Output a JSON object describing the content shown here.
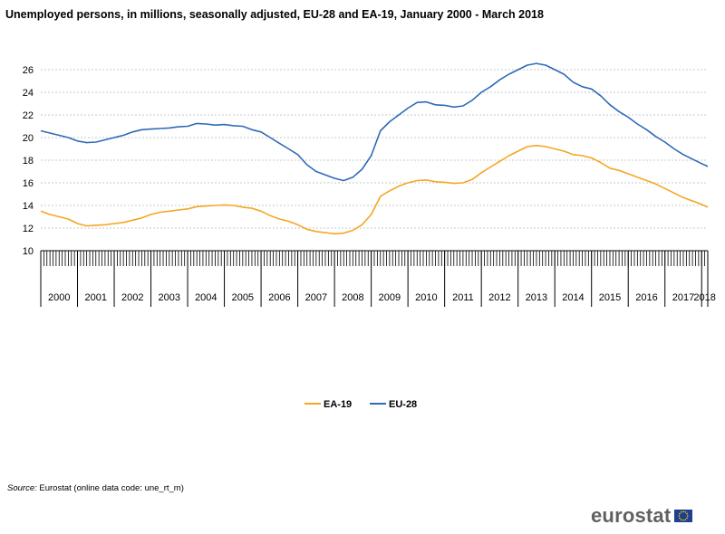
{
  "title": "Unemployed persons, in millions,  seasonally adjusted, EU-28 and EA-19, January 2000 - March 2018",
  "source_label": "Source:",
  "source_text": " Eurostat (online data code: une_rt_m)",
  "logo_text": "eurostat",
  "chart_data": {
    "type": "line",
    "title": "Unemployed persons, in millions,  seasonally adjusted, EU-28 and EA-19, January 2000 - March 2018",
    "xlabel": "",
    "ylabel": "",
    "ylim": [
      10,
      26
    ],
    "yticks": [
      10,
      12,
      14,
      16,
      18,
      20,
      22,
      24,
      26
    ],
    "x_start": "2000-01",
    "x_end": "2018-03",
    "x_categories": [
      "2000",
      "2001",
      "2002",
      "2003",
      "2004",
      "2005",
      "2006",
      "2007",
      "2008",
      "2009",
      "2010",
      "2011",
      "2012",
      "2013",
      "2014",
      "2015",
      "2016",
      "2017",
      "2018"
    ],
    "grid": true,
    "legend_position": "bottom-center",
    "series": [
      {
        "name": "EA-19",
        "color": "#f5a623",
        "points": [
          [
            "2000-01",
            13.5
          ],
          [
            "2000-04",
            13.2
          ],
          [
            "2000-07",
            13.0
          ],
          [
            "2000-10",
            12.8
          ],
          [
            "2001-01",
            12.4
          ],
          [
            "2001-04",
            12.2
          ],
          [
            "2001-07",
            12.25
          ],
          [
            "2001-10",
            12.3
          ],
          [
            "2002-01",
            12.4
          ],
          [
            "2002-04",
            12.5
          ],
          [
            "2002-07",
            12.7
          ],
          [
            "2002-10",
            12.9
          ],
          [
            "2003-01",
            13.2
          ],
          [
            "2003-04",
            13.4
          ],
          [
            "2003-07",
            13.5
          ],
          [
            "2003-10",
            13.6
          ],
          [
            "2004-01",
            13.7
          ],
          [
            "2004-04",
            13.9
          ],
          [
            "2004-07",
            13.95
          ],
          [
            "2004-10",
            14.0
          ],
          [
            "2005-01",
            14.05
          ],
          [
            "2005-04",
            14.0
          ],
          [
            "2005-07",
            13.85
          ],
          [
            "2005-10",
            13.75
          ],
          [
            "2006-01",
            13.5
          ],
          [
            "2006-04",
            13.1
          ],
          [
            "2006-07",
            12.8
          ],
          [
            "2006-10",
            12.6
          ],
          [
            "2007-01",
            12.3
          ],
          [
            "2007-04",
            11.9
          ],
          [
            "2007-07",
            11.7
          ],
          [
            "2007-10",
            11.6
          ],
          [
            "2008-01",
            11.5
          ],
          [
            "2008-04",
            11.55
          ],
          [
            "2008-07",
            11.8
          ],
          [
            "2008-10",
            12.3
          ],
          [
            "2009-01",
            13.2
          ],
          [
            "2009-04",
            14.8
          ],
          [
            "2009-07",
            15.3
          ],
          [
            "2009-10",
            15.7
          ],
          [
            "2010-01",
            16.0
          ],
          [
            "2010-04",
            16.2
          ],
          [
            "2010-07",
            16.25
          ],
          [
            "2010-10",
            16.1
          ],
          [
            "2011-01",
            16.05
          ],
          [
            "2011-04",
            15.95
          ],
          [
            "2011-07",
            16.0
          ],
          [
            "2011-10",
            16.3
          ],
          [
            "2012-01",
            16.9
          ],
          [
            "2012-04",
            17.4
          ],
          [
            "2012-07",
            17.9
          ],
          [
            "2012-10",
            18.4
          ],
          [
            "2013-01",
            18.8
          ],
          [
            "2013-04",
            19.2
          ],
          [
            "2013-07",
            19.3
          ],
          [
            "2013-10",
            19.2
          ],
          [
            "2014-01",
            19.0
          ],
          [
            "2014-04",
            18.8
          ],
          [
            "2014-07",
            18.5
          ],
          [
            "2014-10",
            18.4
          ],
          [
            "2015-01",
            18.2
          ],
          [
            "2015-04",
            17.8
          ],
          [
            "2015-07",
            17.3
          ],
          [
            "2015-10",
            17.1
          ],
          [
            "2016-01",
            16.8
          ],
          [
            "2016-04",
            16.5
          ],
          [
            "2016-07",
            16.2
          ],
          [
            "2016-10",
            15.9
          ],
          [
            "2017-01",
            15.5
          ],
          [
            "2017-04",
            15.1
          ],
          [
            "2017-07",
            14.7
          ],
          [
            "2017-10",
            14.4
          ],
          [
            "2018-01",
            14.1
          ],
          [
            "2018-03",
            13.85
          ]
        ]
      },
      {
        "name": "EU-28",
        "color": "#2e6bb5",
        "points": [
          [
            "2000-01",
            20.6
          ],
          [
            "2000-04",
            20.4
          ],
          [
            "2000-07",
            20.2
          ],
          [
            "2000-10",
            20.0
          ],
          [
            "2001-01",
            19.7
          ],
          [
            "2001-04",
            19.55
          ],
          [
            "2001-07",
            19.6
          ],
          [
            "2001-10",
            19.8
          ],
          [
            "2002-01",
            20.0
          ],
          [
            "2002-04",
            20.2
          ],
          [
            "2002-07",
            20.5
          ],
          [
            "2002-10",
            20.7
          ],
          [
            "2003-01",
            20.75
          ],
          [
            "2003-04",
            20.8
          ],
          [
            "2003-07",
            20.85
          ],
          [
            "2003-10",
            20.95
          ],
          [
            "2004-01",
            21.0
          ],
          [
            "2004-04",
            21.25
          ],
          [
            "2004-07",
            21.2
          ],
          [
            "2004-10",
            21.1
          ],
          [
            "2005-01",
            21.15
          ],
          [
            "2005-04",
            21.05
          ],
          [
            "2005-07",
            21.0
          ],
          [
            "2005-10",
            20.7
          ],
          [
            "2006-01",
            20.5
          ],
          [
            "2006-04",
            20.0
          ],
          [
            "2006-07",
            19.5
          ],
          [
            "2006-10",
            19.0
          ],
          [
            "2007-01",
            18.5
          ],
          [
            "2007-04",
            17.6
          ],
          [
            "2007-07",
            17.0
          ],
          [
            "2007-10",
            16.7
          ],
          [
            "2008-01",
            16.4
          ],
          [
            "2008-04",
            16.2
          ],
          [
            "2008-07",
            16.5
          ],
          [
            "2008-10",
            17.2
          ],
          [
            "2009-01",
            18.4
          ],
          [
            "2009-04",
            20.6
          ],
          [
            "2009-07",
            21.4
          ],
          [
            "2009-10",
            22.0
          ],
          [
            "2010-01",
            22.6
          ],
          [
            "2010-04",
            23.1
          ],
          [
            "2010-07",
            23.15
          ],
          [
            "2010-10",
            22.9
          ],
          [
            "2011-01",
            22.85
          ],
          [
            "2011-04",
            22.7
          ],
          [
            "2011-07",
            22.8
          ],
          [
            "2011-10",
            23.3
          ],
          [
            "2012-01",
            24.0
          ],
          [
            "2012-04",
            24.5
          ],
          [
            "2012-07",
            25.1
          ],
          [
            "2012-10",
            25.6
          ],
          [
            "2013-01",
            26.0
          ],
          [
            "2013-04",
            26.4
          ],
          [
            "2013-07",
            26.55
          ],
          [
            "2013-10",
            26.4
          ],
          [
            "2014-01",
            26.0
          ],
          [
            "2014-04",
            25.6
          ],
          [
            "2014-07",
            24.9
          ],
          [
            "2014-10",
            24.5
          ],
          [
            "2015-01",
            24.3
          ],
          [
            "2015-04",
            23.7
          ],
          [
            "2015-07",
            22.9
          ],
          [
            "2015-10",
            22.3
          ],
          [
            "2016-01",
            21.8
          ],
          [
            "2016-04",
            21.2
          ],
          [
            "2016-07",
            20.7
          ],
          [
            "2016-10",
            20.1
          ],
          [
            "2017-01",
            19.6
          ],
          [
            "2017-04",
            19.0
          ],
          [
            "2017-07",
            18.5
          ],
          [
            "2017-10",
            18.1
          ],
          [
            "2018-01",
            17.7
          ],
          [
            "2018-03",
            17.45
          ]
        ]
      }
    ]
  }
}
